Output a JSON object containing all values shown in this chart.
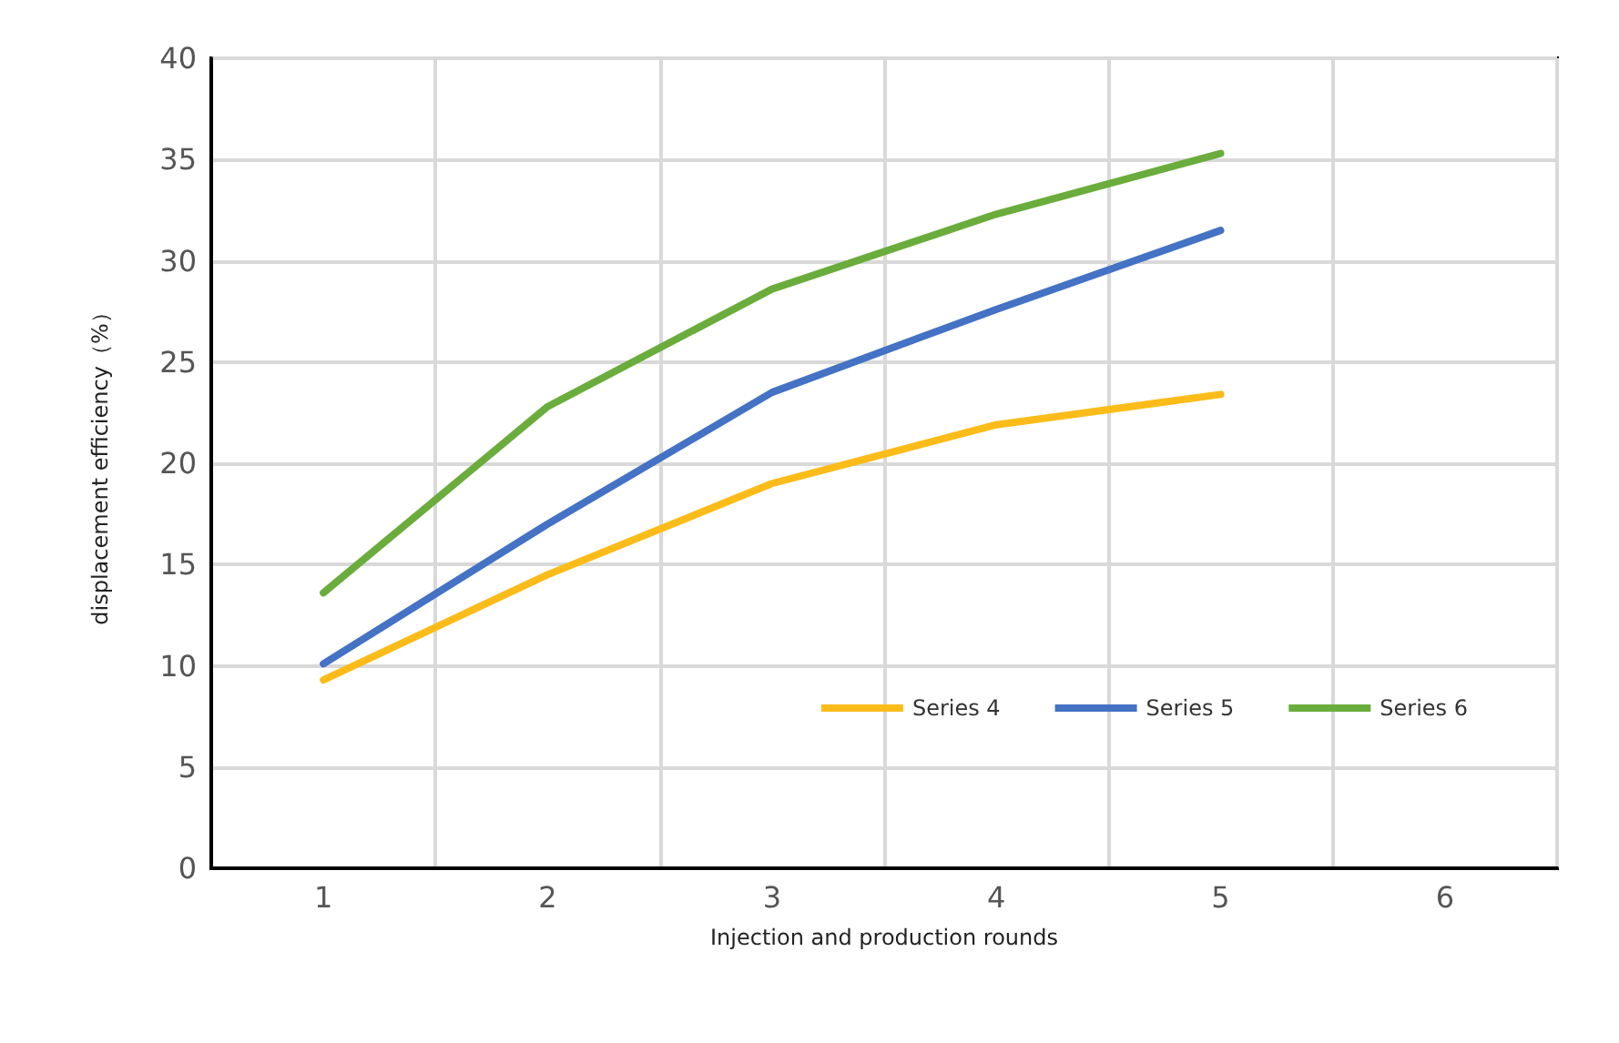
{
  "chart_data": {
    "type": "line",
    "xlabel": "Injection and production rounds",
    "ylabel": "displacement efficiency（%）",
    "categories": [
      "1",
      "2",
      "3",
      "4",
      "5",
      "6"
    ],
    "series": [
      {
        "name": "Series 4",
        "color": "#fbbc1a",
        "values": [
          9.3,
          14.5,
          19,
          21.9,
          23.4,
          null
        ]
      },
      {
        "name": "Series 5",
        "color": "#4472c4",
        "values": [
          10.1,
          17,
          23.5,
          27.6,
          31.5,
          null
        ]
      },
      {
        "name": "Series 6",
        "color": "#6aad3c",
        "values": [
          13.6,
          22.8,
          28.6,
          32.3,
          35.3,
          null
        ]
      }
    ],
    "ylim": [
      0,
      40
    ],
    "yticks": [
      0,
      5,
      10,
      15,
      20,
      25,
      30,
      35,
      40
    ],
    "grid": true,
    "legend": "bottom right",
    "marker": "none",
    "line_style": "solid"
  }
}
